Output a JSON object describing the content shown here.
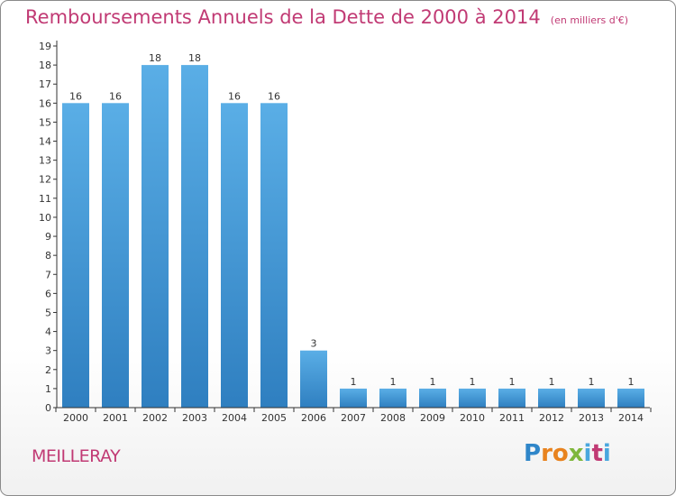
{
  "title": {
    "main": "Remboursements Annuels de la Dette de 2000 à 2014",
    "unit": "(en milliers d'€)"
  },
  "commune": "MEILLERAY",
  "logo": {
    "letters": [
      "P",
      "r",
      "o",
      "x",
      "i",
      "t",
      "i"
    ]
  },
  "colors": {
    "title": "#c13a74",
    "bar_light": "#5aaee6",
    "bar_dark": "#2f7fc0",
    "axis": "#333333"
  },
  "chart_data": {
    "type": "bar",
    "categories": [
      "2000",
      "2001",
      "2002",
      "2003",
      "2004",
      "2005",
      "2006",
      "2007",
      "2008",
      "2009",
      "2010",
      "2011",
      "2012",
      "2013",
      "2014"
    ],
    "values": [
      16,
      16,
      18,
      18,
      16,
      16,
      3,
      1,
      1,
      1,
      1,
      1,
      1,
      1,
      1
    ],
    "data_labels": [
      "16",
      "16",
      "18",
      "18",
      "16",
      "16",
      "3",
      "1",
      "1",
      "1",
      "1",
      "1",
      "1",
      "1",
      "1"
    ],
    "ylim": [
      0,
      19
    ],
    "y_ticks": [
      "0",
      "1",
      "2",
      "3",
      "4",
      "5",
      "6",
      "7",
      "8",
      "9",
      "10",
      "11",
      "12",
      "13",
      "14",
      "15",
      "16",
      "17",
      "18",
      "19"
    ],
    "title": "Remboursements Annuels de la Dette de 2000 à 2014",
    "ylabel": "",
    "xlabel": "",
    "grid": false,
    "legend": "none"
  }
}
